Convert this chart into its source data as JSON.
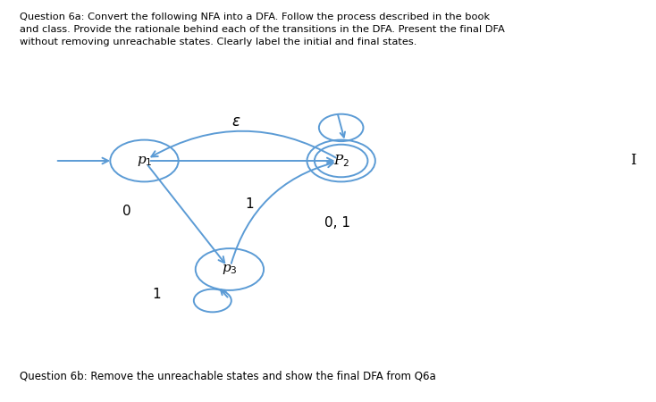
{
  "title_q6a": "Question 6a: Convert the following NFA into a DFA. Follow the process described in the book\nand class. Provide the rationale behind each of the transitions in the DFA. Present the final DFA\nwithout removing unreachable states. Clearly label the initial and final states.",
  "title_q6b": "Question 6b: Remove the unreachable states and show the final DFA from Q6a",
  "p1": [
    0.22,
    0.6
  ],
  "p2": [
    0.52,
    0.6
  ],
  "p3": [
    0.35,
    0.33
  ],
  "r": 0.052,
  "node_color": "#5b9bd5",
  "bg_color": "#ffffff",
  "text_color": "#000000"
}
